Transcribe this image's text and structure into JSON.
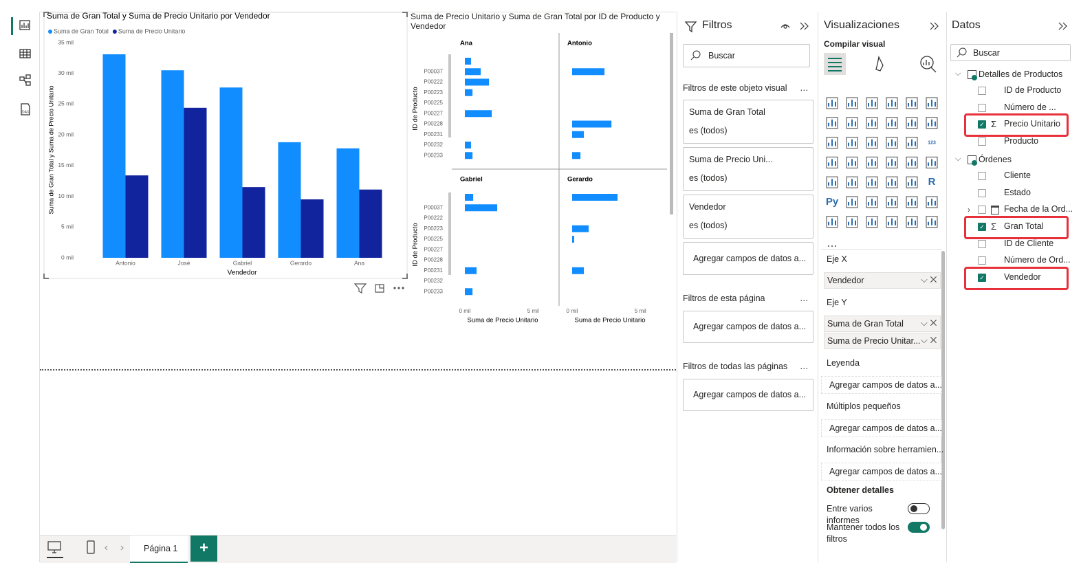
{
  "chart_data": [
    {
      "type": "bar",
      "title": "Suma de Gran Total y Suma de Precio Unitario por Vendedor",
      "x_label": "Vendedor",
      "y_label": "Suma de Gran Total y Suma de Precio Unitario",
      "categories": [
        "Antonio",
        "José",
        "Gabriel",
        "Gerardo",
        "Ana"
      ],
      "series": [
        {
          "name": "Suma de Gran Total",
          "color": "#118dff",
          "values": [
            33100,
            30500,
            27700,
            18800,
            17800
          ]
        },
        {
          "name": "Suma de Precio Unitario",
          "color": "#12239e",
          "values": [
            13400,
            24400,
            11500,
            9500,
            11100
          ]
        }
      ],
      "ylim": [
        0,
        35000
      ],
      "yticks": [
        {
          "value": 0,
          "label": "0 mil"
        },
        {
          "value": 5000,
          "label": "5 mil"
        },
        {
          "value": 10000,
          "label": "10 mil"
        },
        {
          "value": 15000,
          "label": "15 mil"
        },
        {
          "value": 20000,
          "label": "20 mil"
        },
        {
          "value": 25000,
          "label": "25 mil"
        },
        {
          "value": 30000,
          "label": "30 mil"
        },
        {
          "value": 35000,
          "label": "35 mil"
        }
      ],
      "grid": false,
      "legend": "top-left"
    },
    {
      "type": "small-multiples-bar",
      "title": "Suma de Precio Unitario y Suma de Gran Total por ID de Producto y Vendedor",
      "x_label": "Suma de Precio Unitario",
      "y_label": "ID de Producto",
      "color": "#118dff",
      "categories": [
        null,
        "P00037",
        "P00222",
        "P00223",
        "P00225",
        "P00227",
        "P00228",
        "P00231",
        "P00232",
        "P00233"
      ],
      "panels": [
        {
          "name": "Ana",
          "values": [
            450,
            1160,
            1770,
            560,
            null,
            1970,
            null,
            null,
            450,
            560
          ]
        },
        {
          "name": "Antonio",
          "values": [
            null,
            2370,
            null,
            null,
            null,
            null,
            2880,
            860,
            null,
            610
          ]
        },
        {
          "name": "Gabriel",
          "values": [
            610,
            2370,
            null,
            null,
            null,
            null,
            null,
            860,
            null,
            560
          ]
        },
        {
          "name": "Gerardo",
          "values": [
            3330,
            null,
            null,
            1210,
            150,
            null,
            null,
            860,
            null,
            null
          ]
        }
      ],
      "xlim": [
        0,
        6500
      ],
      "xticks": [
        {
          "value": 0,
          "label": "0 mil"
        },
        {
          "value": 5000,
          "label": "5 mil"
        }
      ]
    }
  ],
  "filters": {
    "title": "Filtros",
    "search": "Buscar",
    "more": "…",
    "visual_section": "Filtros de este objeto visual",
    "cards": [
      {
        "field": "Suma de Gran Total",
        "state": "es (todos)"
      },
      {
        "field": "Suma de Precio Uni...",
        "state": "es (todos)"
      },
      {
        "field": "Vendedor",
        "state": "es (todos)"
      }
    ],
    "visual_add": "Agregar campos de datos a...",
    "page_section": "Filtros de esta página",
    "page_add": "Agregar campos de datos a...",
    "all_section": "Filtros de todas las páginas",
    "all_add": "Agregar campos de datos a..."
  },
  "visualizations": {
    "title": "Visualizaciones",
    "subtitle": "Compilar visual",
    "icon_texts": {
      "number": "123",
      "r": "R",
      "python": "Py"
    },
    "wells": [
      {
        "label": "Eje X",
        "fields": [
          "Vendedor"
        ]
      },
      {
        "label": "Eje Y",
        "fields": [
          "Suma de Gran Total",
          "Suma de Precio Unitar..."
        ]
      },
      {
        "label": "Leyenda",
        "placeholder": "Agregar campos de datos a..."
      },
      {
        "label": "Múltiplos pequeños",
        "placeholder": "Agregar campos de datos a..."
      },
      {
        "label": "Información sobre herramien...",
        "placeholder": "Agregar campos de datos a..."
      }
    ],
    "details": {
      "title": "Obtener detalles",
      "toggles": [
        {
          "label": "Entre varios informes",
          "on": false
        },
        {
          "label": "Mantener todos los filtros",
          "on": true
        }
      ]
    }
  },
  "data_pane": {
    "title": "Datos",
    "search": "Buscar",
    "tables": [
      {
        "name": "Detalles de Productos",
        "fields": [
          {
            "name": "ID de Producto"
          },
          {
            "name": "Número de ..."
          },
          {
            "name": "Precio Unitario",
            "checked": true,
            "measure": true,
            "highlighted": true
          },
          {
            "name": "Producto"
          }
        ]
      },
      {
        "name": "Órdenes",
        "fields": [
          {
            "name": "Cliente"
          },
          {
            "name": "Estado"
          },
          {
            "name": "Fecha de la Ord...",
            "date": true
          },
          {
            "name": "Gran Total",
            "checked": true,
            "measure": true,
            "highlighted": true
          },
          {
            "name": "ID de Cliente"
          },
          {
            "name": "Número de Ord..."
          },
          {
            "name": "Vendedor",
            "checked": true,
            "highlighted": true
          }
        ]
      }
    ]
  },
  "pages": {
    "tabs": [
      "Página 1"
    ]
  }
}
